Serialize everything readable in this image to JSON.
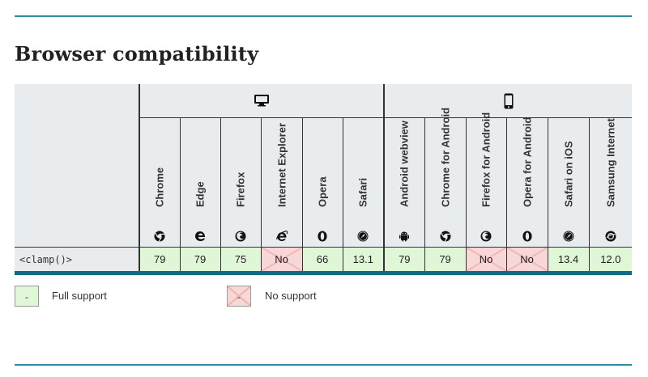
{
  "title": "Browser compatibility",
  "feature": "<clamp()>",
  "browsers": [
    {
      "name": "Chrome",
      "icon": "chrome-icon",
      "value": "79",
      "support": "yes"
    },
    {
      "name": "Edge",
      "icon": "edge-icon",
      "value": "79",
      "support": "yes"
    },
    {
      "name": "Firefox",
      "icon": "firefox-icon",
      "value": "75",
      "support": "yes"
    },
    {
      "name": "Internet Explorer",
      "icon": "internet-explorer-icon",
      "value": "No",
      "support": "no"
    },
    {
      "name": "Opera",
      "icon": "opera-icon",
      "value": "66",
      "support": "yes"
    },
    {
      "name": "Safari",
      "icon": "safari-icon",
      "value": "13.1",
      "support": "yes"
    },
    {
      "name": "Android webview",
      "icon": "android-icon",
      "value": "79",
      "support": "yes"
    },
    {
      "name": "Chrome for Android",
      "icon": "chrome-icon",
      "value": "79",
      "support": "yes"
    },
    {
      "name": "Firefox for Android",
      "icon": "firefox-icon",
      "value": "No",
      "support": "no"
    },
    {
      "name": "Opera for Android",
      "icon": "opera-icon",
      "value": "No",
      "support": "no"
    },
    {
      "name": "Safari on iOS",
      "icon": "safari-icon",
      "value": "13.4",
      "support": "yes"
    },
    {
      "name": "Samsung Internet",
      "icon": "samsung-internet-icon",
      "value": "12.0",
      "support": "yes"
    }
  ],
  "platforms": [
    {
      "icon": "desktop-icon"
    },
    {
      "icon": "mobile-icon"
    }
  ],
  "legend": {
    "full_support": "Full support",
    "no_support": "No support",
    "marker": "-"
  },
  "colors": {
    "full_support": "#e0f7d7",
    "no_support": "#f8d7d7",
    "rule": "#2f8aa4",
    "header_bg": "#e9ecef"
  }
}
